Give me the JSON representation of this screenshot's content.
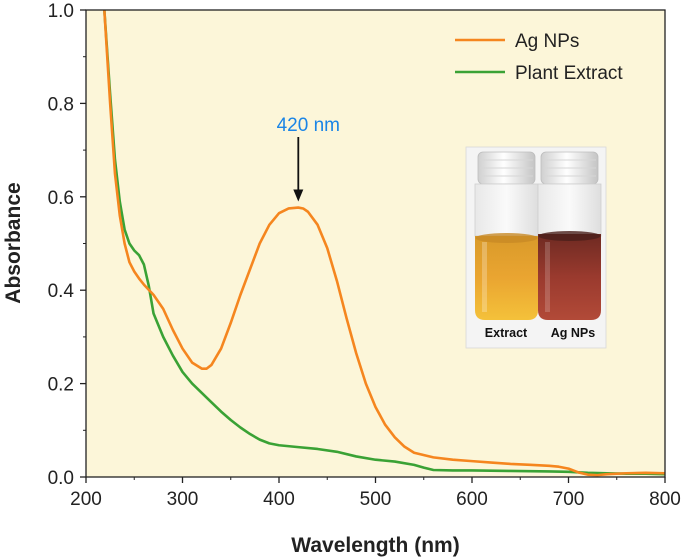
{
  "chart_data": {
    "type": "line",
    "title": "",
    "xlabel": "Wavelength (nm)",
    "ylabel": "Absorbance",
    "xlim": [
      200,
      800
    ],
    "ylim": [
      0.0,
      1.0
    ],
    "x_ticks": [
      200,
      300,
      400,
      500,
      600,
      700,
      800
    ],
    "y_ticks": [
      "0.0",
      "0.2",
      "0.4",
      "0.6",
      "0.8",
      "1.0"
    ],
    "grid": false,
    "legend_position": "top-right",
    "series": [
      {
        "name": "Ag NPs",
        "color": "#f5861f",
        "points": [
          [
            219,
            1.0
          ],
          [
            225,
            0.8
          ],
          [
            230,
            0.65
          ],
          [
            235,
            0.56
          ],
          [
            240,
            0.5
          ],
          [
            245,
            0.46
          ],
          [
            250,
            0.44
          ],
          [
            255,
            0.425
          ],
          [
            260,
            0.412
          ],
          [
            270,
            0.39
          ],
          [
            280,
            0.36
          ],
          [
            290,
            0.315
          ],
          [
            300,
            0.275
          ],
          [
            310,
            0.245
          ],
          [
            320,
            0.232
          ],
          [
            325,
            0.232
          ],
          [
            330,
            0.24
          ],
          [
            340,
            0.275
          ],
          [
            350,
            0.33
          ],
          [
            360,
            0.39
          ],
          [
            370,
            0.445
          ],
          [
            380,
            0.5
          ],
          [
            390,
            0.54
          ],
          [
            400,
            0.565
          ],
          [
            410,
            0.575
          ],
          [
            420,
            0.577
          ],
          [
            425,
            0.575
          ],
          [
            430,
            0.568
          ],
          [
            440,
            0.54
          ],
          [
            450,
            0.49
          ],
          [
            460,
            0.42
          ],
          [
            470,
            0.34
          ],
          [
            480,
            0.265
          ],
          [
            490,
            0.2
          ],
          [
            500,
            0.15
          ],
          [
            510,
            0.112
          ],
          [
            520,
            0.085
          ],
          [
            530,
            0.065
          ],
          [
            540,
            0.052
          ],
          [
            560,
            0.042
          ],
          [
            580,
            0.037
          ],
          [
            600,
            0.034
          ],
          [
            620,
            0.031
          ],
          [
            640,
            0.028
          ],
          [
            660,
            0.026
          ],
          [
            670,
            0.025
          ],
          [
            680,
            0.024
          ],
          [
            690,
            0.022
          ],
          [
            700,
            0.018
          ],
          [
            710,
            0.01
          ],
          [
            720,
            0.005
          ],
          [
            730,
            0.004
          ],
          [
            740,
            0.006
          ],
          [
            760,
            0.008
          ],
          [
            780,
            0.009
          ],
          [
            800,
            0.008
          ]
        ]
      },
      {
        "name": "Plant Extract",
        "color": "#3aa235",
        "points": [
          [
            219,
            1.0
          ],
          [
            225,
            0.82
          ],
          [
            230,
            0.68
          ],
          [
            235,
            0.59
          ],
          [
            240,
            0.53
          ],
          [
            245,
            0.5
          ],
          [
            250,
            0.485
          ],
          [
            255,
            0.475
          ],
          [
            260,
            0.455
          ],
          [
            265,
            0.41
          ],
          [
            270,
            0.35
          ],
          [
            280,
            0.3
          ],
          [
            290,
            0.26
          ],
          [
            300,
            0.225
          ],
          [
            310,
            0.2
          ],
          [
            320,
            0.18
          ],
          [
            330,
            0.16
          ],
          [
            340,
            0.14
          ],
          [
            350,
            0.122
          ],
          [
            360,
            0.106
          ],
          [
            370,
            0.092
          ],
          [
            380,
            0.08
          ],
          [
            390,
            0.072
          ],
          [
            400,
            0.068
          ],
          [
            420,
            0.064
          ],
          [
            440,
            0.06
          ],
          [
            460,
            0.054
          ],
          [
            480,
            0.044
          ],
          [
            500,
            0.037
          ],
          [
            520,
            0.033
          ],
          [
            540,
            0.026
          ],
          [
            550,
            0.02
          ],
          [
            560,
            0.015
          ],
          [
            580,
            0.014
          ],
          [
            600,
            0.014
          ],
          [
            640,
            0.013
          ],
          [
            680,
            0.012
          ],
          [
            700,
            0.011
          ],
          [
            720,
            0.009
          ],
          [
            740,
            0.008
          ],
          [
            760,
            0.007
          ],
          [
            780,
            0.007
          ],
          [
            800,
            0.006
          ]
        ]
      }
    ],
    "annotations": [
      {
        "text": "420 nm",
        "x": 420,
        "y": 0.577,
        "color": "#1a85e6"
      }
    ]
  },
  "inset": {
    "labels": [
      "Extract",
      "Ag NPs"
    ]
  },
  "colors": {
    "plot_background": "#fcf6d9",
    "axis": "#222222"
  }
}
